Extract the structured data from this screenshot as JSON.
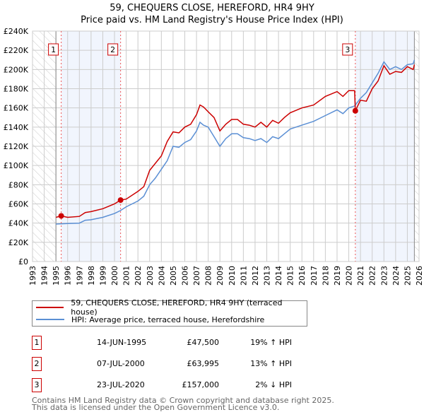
{
  "title": "59, CHEQUERS CLOSE, HEREFORD, HR4 9HY",
  "subtitle": "Price paid vs. HM Land Registry's House Price Index (HPI)",
  "chart_data": {
    "type": "line",
    "title": "59, CHEQUERS CLOSE, HEREFORD, HR4 9HY",
    "xlim": [
      1993,
      2026
    ],
    "ylim": [
      0,
      240000
    ],
    "yticks": [
      0,
      20000,
      40000,
      60000,
      80000,
      100000,
      120000,
      140000,
      160000,
      180000,
      200000,
      220000,
      240000
    ],
    "ytick_labels": [
      "£0",
      "£20K",
      "£40K",
      "£60K",
      "£80K",
      "£100K",
      "£120K",
      "£140K",
      "£160K",
      "£180K",
      "£200K",
      "£220K",
      "£240K"
    ],
    "xticks": [
      1993,
      1994,
      1995,
      1996,
      1997,
      1998,
      1999,
      2000,
      2001,
      2002,
      2003,
      2004,
      2005,
      2006,
      2007,
      2008,
      2009,
      2010,
      2011,
      2012,
      2013,
      2014,
      2015,
      2016,
      2017,
      2018,
      2019,
      2020,
      2021,
      2022,
      2023,
      2024,
      2025,
      2026
    ],
    "grid": true,
    "hatched_ranges": [
      [
        1993,
        1995
      ],
      [
        2025.6,
        2026
      ]
    ],
    "shaded_ranges": [
      [
        1995.45,
        2000.52
      ],
      [
        2020.56,
        2025.6
      ]
    ],
    "series": [
      {
        "name": "59, CHEQUERS CLOSE, HEREFORD, HR4 9HY (terraced house)",
        "color": "#cc0000",
        "x": [
          1995.0,
          1995.45,
          1996,
          1997,
          1997.5,
          1998,
          1999,
          2000,
          2000.52,
          2001,
          2002,
          2002.5,
          2003,
          2004,
          2004.5,
          2005,
          2005.5,
          2006,
          2006.5,
          2007,
          2007.3,
          2007.6,
          2008,
          2008.5,
          2009,
          2009.5,
          2010,
          2010.5,
          2011,
          2011.5,
          2012,
          2012.5,
          2013,
          2013.5,
          2014,
          2014.5,
          2015,
          2016,
          2017,
          2018,
          2019,
          2019.5,
          2020,
          2020.5,
          2020.56,
          2021,
          2021.5,
          2022,
          2022.5,
          2023,
          2023.5,
          2024,
          2024.5,
          2025,
          2025.5,
          2025.6
        ],
        "y": [
          46000,
          47500,
          46000,
          47000,
          51000,
          52000,
          55000,
          60000,
          63995,
          65000,
          73000,
          78000,
          95000,
          110000,
          125000,
          135000,
          134000,
          140000,
          143000,
          153000,
          163000,
          161000,
          156000,
          150000,
          136000,
          143000,
          148000,
          148000,
          143000,
          142000,
          140000,
          145000,
          140000,
          147000,
          144000,
          150000,
          155000,
          160000,
          163000,
          172000,
          177000,
          172000,
          178000,
          178000,
          157000,
          168000,
          167000,
          180000,
          188000,
          204000,
          195000,
          198000,
          197000,
          203000,
          200000,
          205000
        ]
      },
      {
        "name": "HPI: Average price, terraced house, Herefordshire",
        "color": "#5b8fd4",
        "x": [
          1995.0,
          1996,
          1997,
          1997.5,
          1998,
          1999,
          2000,
          2000.5,
          2001,
          2002,
          2002.5,
          2003,
          2003.5,
          2004,
          2004.5,
          2005,
          2005.5,
          2006,
          2006.5,
          2007,
          2007.3,
          2007.6,
          2008,
          2008.5,
          2009,
          2009.5,
          2010,
          2010.5,
          2011,
          2011.5,
          2012,
          2012.5,
          2013,
          2013.5,
          2014,
          2014.5,
          2015,
          2016,
          2017,
          2018,
          2019,
          2019.5,
          2020,
          2020.5,
          2021,
          2021.5,
          2022,
          2022.5,
          2023,
          2023.5,
          2024,
          2024.5,
          2025,
          2025.5,
          2025.6
        ],
        "y": [
          39000,
          39500,
          40000,
          43000,
          43500,
          46000,
          50000,
          53000,
          57000,
          63000,
          68000,
          80000,
          87000,
          96000,
          105000,
          120000,
          119000,
          124000,
          127000,
          136000,
          145000,
          142000,
          140000,
          130000,
          120000,
          128000,
          133000,
          133000,
          129000,
          128000,
          126000,
          128000,
          124000,
          130000,
          128000,
          133000,
          138000,
          142000,
          146000,
          152000,
          158000,
          154000,
          160000,
          162000,
          170000,
          176000,
          186000,
          196000,
          208000,
          200000,
          203000,
          200000,
          205000,
          206000,
          210000
        ]
      }
    ],
    "markers": [
      {
        "label": "1",
        "x": 1995.45,
        "y": 47500
      },
      {
        "label": "2",
        "x": 2000.52,
        "y": 63995
      },
      {
        "label": "3",
        "x": 2020.56,
        "y": 157000
      }
    ]
  },
  "legend": [
    {
      "label": "59, CHEQUERS CLOSE, HEREFORD, HR4 9HY (terraced house)",
      "color": "#cc0000"
    },
    {
      "label": "HPI: Average price, terraced house, Herefordshire",
      "color": "#5b8fd4"
    }
  ],
  "transactions": [
    {
      "num": "1",
      "date": "14-JUN-1995",
      "price": "£47,500",
      "hpi": "19% ↑ HPI"
    },
    {
      "num": "2",
      "date": "07-JUL-2000",
      "price": "£63,995",
      "hpi": "13% ↑ HPI"
    },
    {
      "num": "3",
      "date": "23-JUL-2020",
      "price": "£157,000",
      "hpi": "2% ↓ HPI"
    }
  ],
  "footer": [
    "Contains HM Land Registry data © Crown copyright and database right 2025.",
    "This data is licensed under the Open Government Licence v3.0."
  ]
}
